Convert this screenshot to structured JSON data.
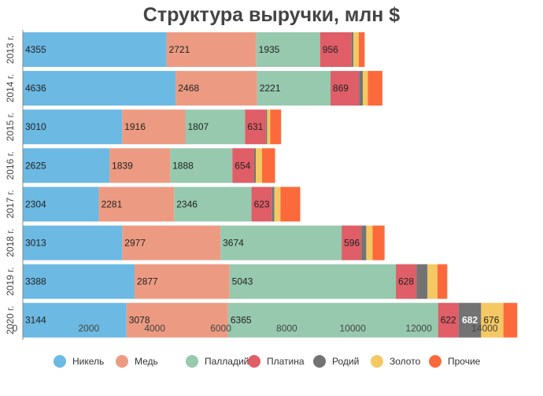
{
  "chart_data": {
    "type": "bar",
    "orientation": "horizontal",
    "stacked": true,
    "title": "Структура выручки, млн $",
    "xlabel": "",
    "ylabel": "",
    "xlim": [
      0,
      15600
    ],
    "x_ticks": [
      0,
      2000,
      4000,
      6000,
      8000,
      10000,
      12000,
      14000
    ],
    "grid": false,
    "legend_position": "bottom",
    "categories": [
      "2013 г.",
      "2014 г.",
      "2015 г.",
      "2016 г.",
      "2017 г.",
      "2018 г.",
      "2019 г.",
      "2020 г."
    ],
    "series": [
      {
        "name": "Никель",
        "color": "#6CB9E3",
        "values": [
          4355,
          4636,
          3010,
          2625,
          2304,
          3013,
          3388,
          3144
        ]
      },
      {
        "name": "Медь",
        "color": "#EC9B82",
        "values": [
          2721,
          2468,
          1916,
          1839,
          2281,
          2977,
          2877,
          3078
        ]
      },
      {
        "name": "Палладий",
        "color": "#97C9AF",
        "values": [
          1935,
          2221,
          1807,
          1888,
          2346,
          3674,
          5043,
          6365
        ]
      },
      {
        "name": "Платина",
        "color": "#DF5E67",
        "values": [
          956,
          869,
          631,
          654,
          623,
          596,
          628,
          622
        ]
      },
      {
        "name": "Родий",
        "color": "#737373",
        "values": [
          50,
          110,
          40,
          55,
          70,
          150,
          330,
          682
        ]
      },
      {
        "name": "Золото",
        "color": "#F4C862",
        "values": [
          165,
          155,
          95,
          190,
          185,
          190,
          300,
          676
        ]
      },
      {
        "name": "Прочие",
        "color": "#FC6A3C",
        "values": [
          180,
          440,
          330,
          395,
          600,
          365,
          300,
          420
        ]
      }
    ],
    "data_labels": [
      [
        "4355",
        "2721",
        "1935",
        "956",
        "",
        "",
        ""
      ],
      [
        "4636",
        "2468",
        "2221",
        "869",
        "",
        "",
        ""
      ],
      [
        "3010",
        "1916",
        "1807",
        "631",
        "",
        "",
        ""
      ],
      [
        "2625",
        "1839",
        "1888",
        "654",
        "",
        "",
        ""
      ],
      [
        "2304",
        "2281",
        "2346",
        "623",
        "",
        "",
        ""
      ],
      [
        "3013",
        "2977",
        "3674",
        "596",
        "",
        "",
        ""
      ],
      [
        "3388",
        "2877",
        "5043",
        "628",
        "",
        "",
        ""
      ],
      [
        "3144",
        "3078",
        "6365",
        "622",
        "682",
        "676",
        ""
      ]
    ]
  }
}
